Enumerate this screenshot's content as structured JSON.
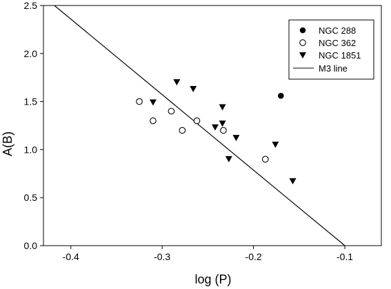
{
  "chart_data": {
    "type": "scatter",
    "xlabel": "log (P)",
    "ylabel": "A(B)",
    "xlim": [
      -0.43,
      -0.06
    ],
    "ylim": [
      0.0,
      2.5
    ],
    "xticks": [
      -0.4,
      -0.3,
      -0.2,
      -0.1
    ],
    "xtick_labels": [
      "-0.4",
      "-0.3",
      "-0.2",
      "-0.1"
    ],
    "yticks": [
      0.0,
      0.5,
      1.0,
      1.5,
      2.0,
      2.5
    ],
    "ytick_labels": [
      "0.0",
      "0.5",
      "1.0",
      "1.5",
      "2.0",
      "2.5"
    ],
    "grid": false,
    "legend_position": "top-right",
    "series": [
      {
        "name": "NGC 288",
        "marker": "filled-circle",
        "color": "#000000",
        "points": [
          [
            -0.17,
            1.56
          ]
        ]
      },
      {
        "name": "NGC 362",
        "marker": "open-circle",
        "color": "#000000",
        "points": [
          [
            -0.325,
            1.5
          ],
          [
            -0.31,
            1.3
          ],
          [
            -0.29,
            1.4
          ],
          [
            -0.278,
            1.2
          ],
          [
            -0.262,
            1.3
          ],
          [
            -0.233,
            1.2
          ],
          [
            -0.187,
            0.9
          ]
        ]
      },
      {
        "name": "NGC 1851",
        "marker": "filled-triangle-down",
        "color": "#000000",
        "points": [
          [
            -0.31,
            1.49
          ],
          [
            -0.284,
            1.7
          ],
          [
            -0.266,
            1.63
          ],
          [
            -0.242,
            1.23
          ],
          [
            -0.234,
            1.44
          ],
          [
            -0.234,
            1.27
          ],
          [
            -0.227,
            0.9
          ],
          [
            -0.219,
            1.12
          ],
          [
            -0.176,
            1.05
          ],
          [
            -0.157,
            0.67
          ]
        ]
      }
    ],
    "lines": [
      {
        "name": "M3 line",
        "color": "#000000",
        "points": [
          [
            -0.418,
            2.5
          ],
          [
            -0.1,
            0.0
          ]
        ]
      }
    ]
  }
}
